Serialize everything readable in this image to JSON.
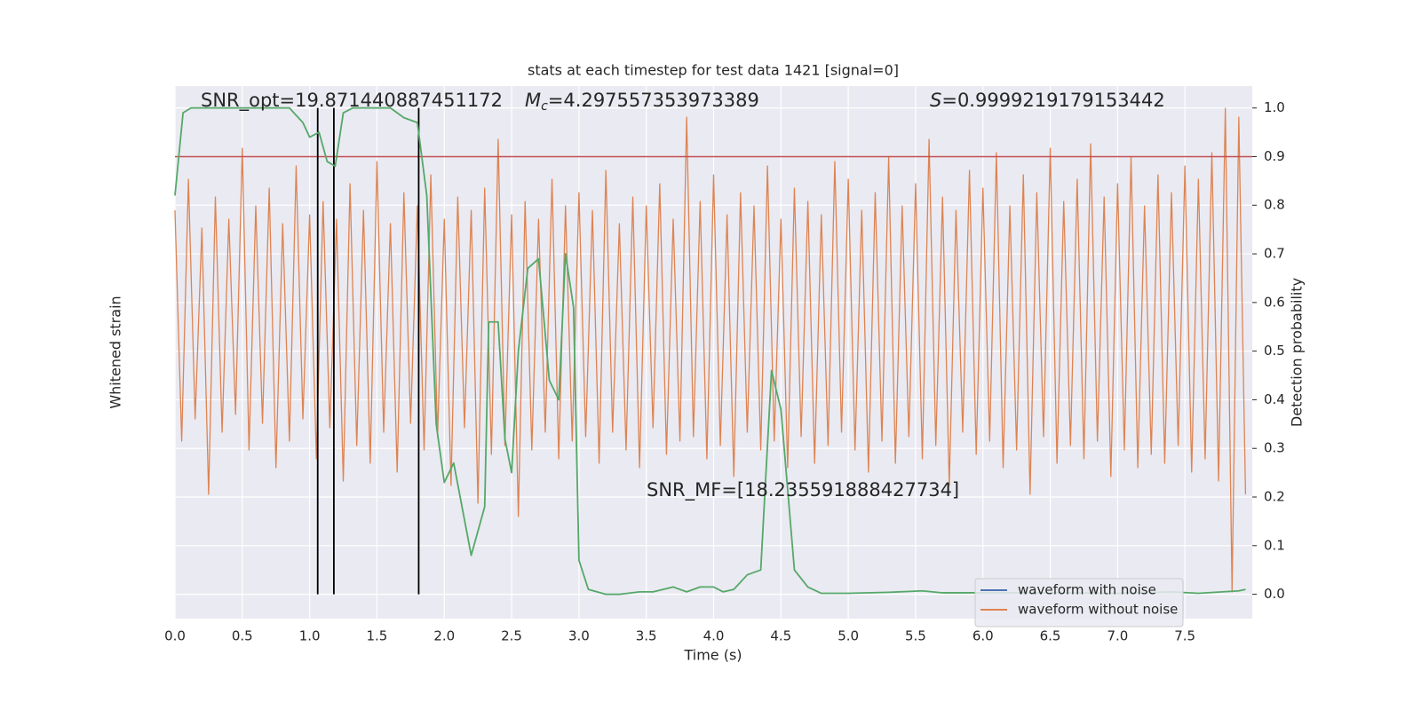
{
  "chart_data": {
    "type": "line",
    "title": "stats at each timestep for test data 1421 [signal=0]",
    "xlabel": "Time (s)",
    "ylabel": "Whitened strain",
    "y2label": "Detection probability",
    "annotations": [
      "SNR_opt=19.871440887451172",
      {
        "symbol": "M",
        "subscript": "c",
        "text": "=4.297557353973389"
      },
      {
        "symbol": "S",
        "text": "=0.9999219179153442"
      },
      "SNR_MF=[18.235591888427734]"
    ],
    "xlim": [
      0,
      8
    ],
    "ylim": [
      -6.4,
      5.6
    ],
    "y2lim": [
      -0.05,
      1.045
    ],
    "xticks": [
      {
        "value": 0,
        "label": "0.0"
      },
      {
        "value": 0.5,
        "label": "0.5"
      },
      {
        "value": 1,
        "label": "1.0"
      },
      {
        "value": 1.5,
        "label": "1.5"
      },
      {
        "value": 2,
        "label": "2.0"
      },
      {
        "value": 2.5,
        "label": "2.5"
      },
      {
        "value": 3,
        "label": "3.0"
      },
      {
        "value": 3.5,
        "label": "3.5"
      },
      {
        "value": 4,
        "label": "4.0"
      },
      {
        "value": 4.5,
        "label": "4.5"
      },
      {
        "value": 5,
        "label": "5.0"
      },
      {
        "value": 5.5,
        "label": "5.5"
      },
      {
        "value": 6,
        "label": "6.0"
      },
      {
        "value": 6.5,
        "label": "6.5"
      },
      {
        "value": 7,
        "label": "7.0"
      },
      {
        "value": 7.5,
        "label": "7.5"
      }
    ],
    "y2ticks": [
      {
        "value": 0,
        "label": "0.0"
      },
      0.1,
      0.2,
      0.3,
      0.4,
      0.5,
      0.6,
      0.7,
      0.8,
      0.9,
      {
        "value": 1,
        "label": "1.0"
      }
    ],
    "grid": true,
    "legend": "lower right",
    "threshold": 0.9,
    "threshold_color": "#c44e52",
    "vlines": [
      1.06,
      1.18,
      1.81
    ],
    "vline_color": "#000000",
    "series": [
      {
        "name": "waveform with noise",
        "color": "#4c72b0"
      },
      {
        "name": "waveform without noise",
        "color": "#dd8452",
        "x": [
          0,
          0.05,
          0.1,
          0.15,
          0.2,
          0.25,
          0.3,
          0.35,
          0.4,
          0.45,
          0.5,
          0.55,
          0.6,
          0.65,
          0.7,
          0.75,
          0.8,
          0.85,
          0.9,
          0.95,
          1,
          1.05,
          1.1,
          1.15,
          1.2,
          1.25,
          1.3,
          1.35,
          1.4,
          1.45,
          1.5,
          1.55,
          1.6,
          1.65,
          1.7,
          1.75,
          1.8,
          1.85,
          1.9,
          1.95,
          2,
          2.05,
          2.1,
          2.15,
          2.2,
          2.25,
          2.3,
          2.35,
          2.4,
          2.45,
          2.5,
          2.55,
          2.6,
          2.65,
          2.7,
          2.75,
          2.8,
          2.85,
          2.9,
          2.95,
          3,
          3.05,
          3.1,
          3.15,
          3.2,
          3.25,
          3.3,
          3.35,
          3.4,
          3.45,
          3.5,
          3.55,
          3.6,
          3.65,
          3.7,
          3.75,
          3.8,
          3.85,
          3.9,
          3.95,
          4,
          4.05,
          4.1,
          4.15,
          4.2,
          4.25,
          4.3,
          4.35,
          4.4,
          4.45,
          4.5,
          4.55,
          4.6,
          4.65,
          4.7,
          4.75,
          4.8,
          4.85,
          4.9,
          4.95,
          5,
          5.05,
          5.1,
          5.15,
          5.2,
          5.25,
          5.3,
          5.35,
          5.4,
          5.45,
          5.5,
          5.55,
          5.6,
          5.65,
          5.7,
          5.75,
          5.8,
          5.85,
          5.9,
          5.95,
          6,
          6.05,
          6.1,
          6.15,
          6.2,
          6.25,
          6.3,
          6.35,
          6.4,
          6.45,
          6.5,
          6.55,
          6.6,
          6.65,
          6.7,
          6.75,
          6.8,
          6.85,
          6.9,
          6.95,
          7,
          7.05,
          7.1,
          7.15,
          7.2,
          7.25,
          7.3,
          7.35,
          7.4,
          7.45,
          7.5,
          7.55,
          7.6,
          7.65,
          7.7,
          7.75,
          7.8,
          7.85,
          7.9,
          7.95
        ],
        "values": [
          2.8,
          -2.4,
          3.5,
          -1.9,
          2.4,
          -3.6,
          3.1,
          -2.2,
          2.6,
          -1.8,
          4.2,
          -2.6,
          2.9,
          -2.0,
          3.3,
          -3.0,
          2.5,
          -2.4,
          3.8,
          -1.9,
          2.7,
          -2.8,
          3.0,
          -2.1,
          2.6,
          -3.3,
          3.4,
          -2.5,
          2.8,
          -2.9,
          3.9,
          -2.2,
          2.5,
          -3.1,
          3.2,
          -2.0,
          2.9,
          -2.6,
          3.6,
          -2.3,
          2.6,
          -3.4,
          3.1,
          -2.1,
          2.8,
          -3.8,
          3.3,
          -2.7,
          4.4,
          -2.5,
          2.7,
          -4.1,
          3.0,
          -2.6,
          2.6,
          -2.2,
          3.5,
          -2.8,
          2.9,
          -2.4,
          3.2,
          -2.3,
          2.8,
          -2.9,
          3.7,
          -2.2,
          2.5,
          -2.6,
          3.1,
          -3.0,
          2.9,
          -2.1,
          3.4,
          -2.7,
          2.6,
          -2.4,
          4.9,
          -2.3,
          3.0,
          -2.8,
          3.6,
          -2.5,
          2.7,
          -3.2,
          3.2,
          -2.2,
          2.9,
          -2.6,
          3.8,
          -2.4,
          2.6,
          -3.0,
          3.3,
          -2.3,
          3.0,
          -2.9,
          2.7,
          -2.5,
          3.9,
          -2.2,
          3.5,
          -2.6,
          2.8,
          -3.1,
          3.2,
          -2.4,
          4.0,
          -2.9,
          2.9,
          -2.3,
          3.4,
          -2.8,
          4.4,
          -2.5,
          3.1,
          -3.4,
          2.8,
          -2.2,
          3.7,
          -2.7,
          3.3,
          -2.4,
          4.1,
          -3.0,
          2.9,
          -2.6,
          3.6,
          -3.6,
          3.2,
          -2.3,
          4.2,
          -2.9,
          3.0,
          -2.5,
          3.5,
          -2.8,
          4.3,
          -2.4,
          3.1,
          -3.2,
          3.4,
          -2.6,
          4.0,
          -3.0,
          2.9,
          -2.7,
          3.6,
          -2.9,
          3.2,
          -2.5,
          3.8,
          -3.1,
          3.5,
          -2.8,
          4.1,
          -3.3,
          5.1,
          -5.8,
          4.9,
          -3.6
        ]
      },
      {
        "color": "#55a868",
        "axis": "y2",
        "x": [
          0,
          0.06,
          0.12,
          0.25,
          0.5,
          0.75,
          0.85,
          0.95,
          1.0,
          1.07,
          1.13,
          1.19,
          1.25,
          1.32,
          1.45,
          1.6,
          1.7,
          1.8,
          1.87,
          1.94,
          2.0,
          2.07,
          2.2,
          2.3,
          2.33,
          2.4,
          2.45,
          2.5,
          2.55,
          2.62,
          2.7,
          2.78,
          2.85,
          2.9,
          2.96,
          3.0,
          3.07,
          3.2,
          3.3,
          3.45,
          3.55,
          3.7,
          3.8,
          3.9,
          4.0,
          4.07,
          4.15,
          4.25,
          4.35,
          4.43,
          4.5,
          4.6,
          4.7,
          4.8,
          5.0,
          5.3,
          5.55,
          5.7,
          6.0,
          6.5,
          7.0,
          7.4,
          7.6,
          7.9,
          7.95
        ],
        "values": [
          0.82,
          0.99,
          1.0,
          1.0,
          1.0,
          1.0,
          1.0,
          0.97,
          0.94,
          0.95,
          0.89,
          0.88,
          0.99,
          1.0,
          1.0,
          1.0,
          0.98,
          0.97,
          0.82,
          0.35,
          0.23,
          0.27,
          0.08,
          0.18,
          0.56,
          0.56,
          0.32,
          0.25,
          0.5,
          0.67,
          0.69,
          0.44,
          0.4,
          0.7,
          0.59,
          0.07,
          0.01,
          0.0,
          0.0,
          0.005,
          0.005,
          0.015,
          0.005,
          0.015,
          0.015,
          0.005,
          0.01,
          0.04,
          0.05,
          0.46,
          0.38,
          0.05,
          0.015,
          0.002,
          0.002,
          0.004,
          0.007,
          0.003,
          0.003,
          0.003,
          0.002,
          0.005,
          0.002,
          0.007,
          0.01
        ]
      }
    ]
  }
}
